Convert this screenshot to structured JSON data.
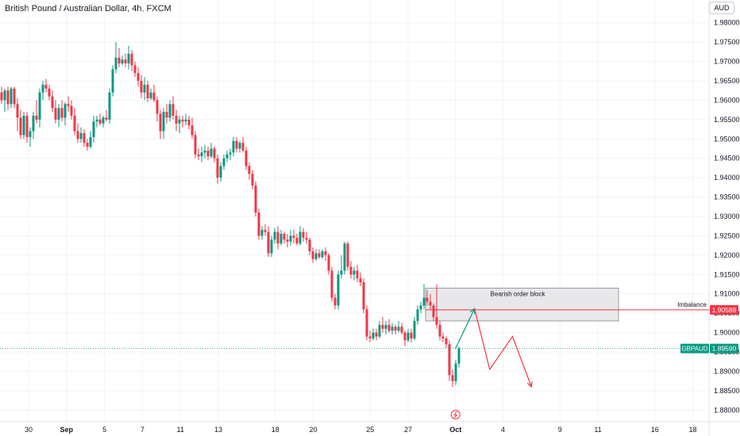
{
  "header": {
    "title": "British Pound / Australian Dollar, 4h, FXCM",
    "currency": "AUD"
  },
  "chart_data": {
    "type": "candlestick",
    "symbol": "GBPAUD",
    "y_ticks": [
      "1.98000",
      "1.97500",
      "1.97000",
      "1.96500",
      "1.96000",
      "1.95500",
      "1.95000",
      "1.94500",
      "1.94000",
      "1.93500",
      "1.93000",
      "1.92500",
      "1.92000",
      "1.91500",
      "1.91000",
      "1.90500",
      "1.90000",
      "1.89500",
      "1.89000",
      "1.88500",
      "1.88000"
    ],
    "ylim": [
      1.8795,
      1.9815
    ],
    "x_ticks": [
      {
        "label": "30",
        "day": 0
      },
      {
        "label": "Sep",
        "day": 2
      },
      {
        "label": "5",
        "day": 4
      },
      {
        "label": "7",
        "day": 6
      },
      {
        "label": "11",
        "day": 8
      },
      {
        "label": "13",
        "day": 10
      },
      {
        "label": "18",
        "day": 13
      },
      {
        "label": "20",
        "day": 15
      },
      {
        "label": "25",
        "day": 18
      },
      {
        "label": "27",
        "day": 20
      },
      {
        "label": "Oct",
        "day": 22.5
      },
      {
        "label": "4",
        "day": 25
      },
      {
        "label": "9",
        "day": 28
      },
      {
        "label": "11",
        "day": 30
      },
      {
        "label": "16",
        "day": 33
      },
      {
        "label": "18",
        "day": 35
      }
    ],
    "candles": [
      {
        "o": 1.962,
        "h": 1.9635,
        "l": 1.959,
        "c": 1.96
      },
      {
        "o": 1.96,
        "h": 1.963,
        "l": 1.957,
        "c": 1.9625
      },
      {
        "o": 1.9625,
        "h": 1.9635,
        "l": 1.9575,
        "c": 1.959
      },
      {
        "o": 1.959,
        "h": 1.9635,
        "l": 1.958,
        "c": 1.963
      },
      {
        "o": 1.963,
        "h": 1.9635,
        "l": 1.958,
        "c": 1.959
      },
      {
        "o": 1.959,
        "h": 1.9605,
        "l": 1.952,
        "c": 1.9555
      },
      {
        "o": 1.9555,
        "h": 1.9575,
        "l": 1.95,
        "c": 1.951
      },
      {
        "o": 1.951,
        "h": 1.957,
        "l": 1.95,
        "c": 1.956
      },
      {
        "o": 1.956,
        "h": 1.957,
        "l": 1.949,
        "c": 1.9505
      },
      {
        "o": 1.9505,
        "h": 1.953,
        "l": 1.948,
        "c": 1.952
      },
      {
        "o": 1.952,
        "h": 1.957,
        "l": 1.95,
        "c": 1.956
      },
      {
        "o": 1.956,
        "h": 1.96,
        "l": 1.954,
        "c": 1.955
      },
      {
        "o": 1.955,
        "h": 1.963,
        "l": 1.953,
        "c": 1.962
      },
      {
        "o": 1.962,
        "h": 1.965,
        "l": 1.96,
        "c": 1.964
      },
      {
        "o": 1.964,
        "h": 1.9655,
        "l": 1.962,
        "c": 1.963
      },
      {
        "o": 1.963,
        "h": 1.964,
        "l": 1.96,
        "c": 1.961
      },
      {
        "o": 1.961,
        "h": 1.9625,
        "l": 1.957,
        "c": 1.958
      },
      {
        "o": 1.958,
        "h": 1.96,
        "l": 1.954,
        "c": 1.955
      },
      {
        "o": 1.955,
        "h": 1.959,
        "l": 1.953,
        "c": 1.958
      },
      {
        "o": 1.958,
        "h": 1.96,
        "l": 1.9545,
        "c": 1.9555
      },
      {
        "o": 1.9555,
        "h": 1.9595,
        "l": 1.9535,
        "c": 1.959
      },
      {
        "o": 1.959,
        "h": 1.961,
        "l": 1.957,
        "c": 1.9585
      },
      {
        "o": 1.9585,
        "h": 1.96,
        "l": 1.955,
        "c": 1.956
      },
      {
        "o": 1.956,
        "h": 1.958,
        "l": 1.951,
        "c": 1.952
      },
      {
        "o": 1.952,
        "h": 1.954,
        "l": 1.949,
        "c": 1.95
      },
      {
        "o": 1.95,
        "h": 1.953,
        "l": 1.949,
        "c": 1.9515
      },
      {
        "o": 1.9515,
        "h": 1.9525,
        "l": 1.948,
        "c": 1.949
      },
      {
        "o": 1.949,
        "h": 1.95,
        "l": 1.947,
        "c": 1.948
      },
      {
        "o": 1.948,
        "h": 1.952,
        "l": 1.9475,
        "c": 1.9505
      },
      {
        "o": 1.9505,
        "h": 1.956,
        "l": 1.949,
        "c": 1.9545
      },
      {
        "o": 1.9545,
        "h": 1.956,
        "l": 1.953,
        "c": 1.955
      },
      {
        "o": 1.955,
        "h": 1.9565,
        "l": 1.9535,
        "c": 1.954
      },
      {
        "o": 1.954,
        "h": 1.956,
        "l": 1.953,
        "c": 1.9555
      },
      {
        "o": 1.9555,
        "h": 1.9575,
        "l": 1.9545,
        "c": 1.955
      },
      {
        "o": 1.955,
        "h": 1.963,
        "l": 1.954,
        "c": 1.962
      },
      {
        "o": 1.962,
        "h": 1.969,
        "l": 1.961,
        "c": 1.968
      },
      {
        "o": 1.968,
        "h": 1.975,
        "l": 1.967,
        "c": 1.971
      },
      {
        "o": 1.971,
        "h": 1.9735,
        "l": 1.9685,
        "c": 1.9695
      },
      {
        "o": 1.9695,
        "h": 1.9715,
        "l": 1.969,
        "c": 1.9705
      },
      {
        "o": 1.9705,
        "h": 1.972,
        "l": 1.9685,
        "c": 1.9695
      },
      {
        "o": 1.9695,
        "h": 1.974,
        "l": 1.968,
        "c": 1.972
      },
      {
        "o": 1.972,
        "h": 1.973,
        "l": 1.9675,
        "c": 1.969
      },
      {
        "o": 1.969,
        "h": 1.97,
        "l": 1.966,
        "c": 1.967
      },
      {
        "o": 1.967,
        "h": 1.9685,
        "l": 1.9635,
        "c": 1.965
      },
      {
        "o": 1.965,
        "h": 1.9665,
        "l": 1.9605,
        "c": 1.962
      },
      {
        "o": 1.962,
        "h": 1.966,
        "l": 1.96,
        "c": 1.964
      },
      {
        "o": 1.964,
        "h": 1.965,
        "l": 1.9595,
        "c": 1.9605
      },
      {
        "o": 1.9605,
        "h": 1.963,
        "l": 1.96,
        "c": 1.962
      },
      {
        "o": 1.962,
        "h": 1.964,
        "l": 1.9595,
        "c": 1.96
      },
      {
        "o": 1.96,
        "h": 1.961,
        "l": 1.9545,
        "c": 1.9565
      },
      {
        "o": 1.9565,
        "h": 1.9575,
        "l": 1.95,
        "c": 1.952
      },
      {
        "o": 1.952,
        "h": 1.958,
        "l": 1.95,
        "c": 1.957
      },
      {
        "o": 1.957,
        "h": 1.959,
        "l": 1.954,
        "c": 1.9555
      },
      {
        "o": 1.9555,
        "h": 1.96,
        "l": 1.9545,
        "c": 1.959
      },
      {
        "o": 1.959,
        "h": 1.961,
        "l": 1.955,
        "c": 1.956
      },
      {
        "o": 1.956,
        "h": 1.9575,
        "l": 1.952,
        "c": 1.954
      },
      {
        "o": 1.954,
        "h": 1.956,
        "l": 1.9515,
        "c": 1.955
      },
      {
        "o": 1.955,
        "h": 1.956,
        "l": 1.953,
        "c": 1.9545
      },
      {
        "o": 1.9545,
        "h": 1.9565,
        "l": 1.9535,
        "c": 1.955
      },
      {
        "o": 1.955,
        "h": 1.956,
        "l": 1.9525,
        "c": 1.9535
      },
      {
        "o": 1.9535,
        "h": 1.9555,
        "l": 1.95,
        "c": 1.951
      },
      {
        "o": 1.951,
        "h": 1.952,
        "l": 1.945,
        "c": 1.946
      },
      {
        "o": 1.946,
        "h": 1.9475,
        "l": 1.9445,
        "c": 1.9455
      },
      {
        "o": 1.9455,
        "h": 1.948,
        "l": 1.944,
        "c": 1.9465
      },
      {
        "o": 1.9465,
        "h": 1.9485,
        "l": 1.945,
        "c": 1.947
      },
      {
        "o": 1.947,
        "h": 1.948,
        "l": 1.9445,
        "c": 1.9455
      },
      {
        "o": 1.9455,
        "h": 1.949,
        "l": 1.945,
        "c": 1.9475
      },
      {
        "o": 1.9475,
        "h": 1.948,
        "l": 1.944,
        "c": 1.945
      },
      {
        "o": 1.945,
        "h": 1.946,
        "l": 1.9385,
        "c": 1.94
      },
      {
        "o": 1.94,
        "h": 1.944,
        "l": 1.939,
        "c": 1.943
      },
      {
        "o": 1.943,
        "h": 1.946,
        "l": 1.942,
        "c": 1.945
      },
      {
        "o": 1.945,
        "h": 1.947,
        "l": 1.944,
        "c": 1.946
      },
      {
        "o": 1.946,
        "h": 1.9475,
        "l": 1.9445,
        "c": 1.9465
      },
      {
        "o": 1.9465,
        "h": 1.9505,
        "l": 1.9455,
        "c": 1.9495
      },
      {
        "o": 1.9495,
        "h": 1.9505,
        "l": 1.9465,
        "c": 1.9475
      },
      {
        "o": 1.9475,
        "h": 1.9495,
        "l": 1.9465,
        "c": 1.949
      },
      {
        "o": 1.949,
        "h": 1.9505,
        "l": 1.9465,
        "c": 1.947
      },
      {
        "o": 1.947,
        "h": 1.948,
        "l": 1.942,
        "c": 1.943
      },
      {
        "o": 1.943,
        "h": 1.944,
        "l": 1.9395,
        "c": 1.941
      },
      {
        "o": 1.941,
        "h": 1.942,
        "l": 1.937,
        "c": 1.938
      },
      {
        "o": 1.938,
        "h": 1.939,
        "l": 1.93,
        "c": 1.931
      },
      {
        "o": 1.931,
        "h": 1.932,
        "l": 1.924,
        "c": 1.925
      },
      {
        "o": 1.925,
        "h": 1.9275,
        "l": 1.924,
        "c": 1.9265
      },
      {
        "o": 1.9265,
        "h": 1.928,
        "l": 1.925,
        "c": 1.926
      },
      {
        "o": 1.926,
        "h": 1.9275,
        "l": 1.9195,
        "c": 1.9205
      },
      {
        "o": 1.9205,
        "h": 1.925,
        "l": 1.9195,
        "c": 1.924
      },
      {
        "o": 1.924,
        "h": 1.927,
        "l": 1.923,
        "c": 1.926
      },
      {
        "o": 1.926,
        "h": 1.9275,
        "l": 1.9215,
        "c": 1.923
      },
      {
        "o": 1.923,
        "h": 1.9265,
        "l": 1.9225,
        "c": 1.9255
      },
      {
        "o": 1.9255,
        "h": 1.926,
        "l": 1.923,
        "c": 1.924
      },
      {
        "o": 1.924,
        "h": 1.9255,
        "l": 1.922,
        "c": 1.9235
      },
      {
        "o": 1.9235,
        "h": 1.9265,
        "l": 1.9225,
        "c": 1.925
      },
      {
        "o": 1.925,
        "h": 1.9265,
        "l": 1.923,
        "c": 1.9245
      },
      {
        "o": 1.9245,
        "h": 1.9255,
        "l": 1.9225,
        "c": 1.923
      },
      {
        "o": 1.923,
        "h": 1.9275,
        "l": 1.9225,
        "c": 1.926
      },
      {
        "o": 1.926,
        "h": 1.927,
        "l": 1.9235,
        "c": 1.9245
      },
      {
        "o": 1.9245,
        "h": 1.926,
        "l": 1.923,
        "c": 1.924
      },
      {
        "o": 1.924,
        "h": 1.9245,
        "l": 1.92,
        "c": 1.921
      },
      {
        "o": 1.921,
        "h": 1.922,
        "l": 1.918,
        "c": 1.919
      },
      {
        "o": 1.919,
        "h": 1.9215,
        "l": 1.9185,
        "c": 1.9205
      },
      {
        "o": 1.9205,
        "h": 1.9215,
        "l": 1.919,
        "c": 1.9195
      },
      {
        "o": 1.9195,
        "h": 1.9215,
        "l": 1.919,
        "c": 1.921
      },
      {
        "o": 1.921,
        "h": 1.922,
        "l": 1.9185,
        "c": 1.92
      },
      {
        "o": 1.92,
        "h": 1.9205,
        "l": 1.915,
        "c": 1.916
      },
      {
        "o": 1.916,
        "h": 1.917,
        "l": 1.908,
        "c": 1.909
      },
      {
        "o": 1.909,
        "h": 1.91,
        "l": 1.906,
        "c": 1.907
      },
      {
        "o": 1.907,
        "h": 1.916,
        "l": 1.906,
        "c": 1.915
      },
      {
        "o": 1.915,
        "h": 1.92,
        "l": 1.914,
        "c": 1.916
      },
      {
        "o": 1.916,
        "h": 1.9235,
        "l": 1.915,
        "c": 1.923
      },
      {
        "o": 1.923,
        "h": 1.9235,
        "l": 1.916,
        "c": 1.917
      },
      {
        "o": 1.917,
        "h": 1.9185,
        "l": 1.914,
        "c": 1.915
      },
      {
        "o": 1.915,
        "h": 1.917,
        "l": 1.9135,
        "c": 1.916
      },
      {
        "o": 1.916,
        "h": 1.9175,
        "l": 1.913,
        "c": 1.914
      },
      {
        "o": 1.914,
        "h": 1.9155,
        "l": 1.912,
        "c": 1.913
      },
      {
        "o": 1.913,
        "h": 1.914,
        "l": 1.905,
        "c": 1.906
      },
      {
        "o": 1.906,
        "h": 1.907,
        "l": 1.898,
        "c": 1.899
      },
      {
        "o": 1.899,
        "h": 1.9005,
        "l": 1.8975,
        "c": 1.8985
      },
      {
        "o": 1.8985,
        "h": 1.901,
        "l": 1.898,
        "c": 1.9
      },
      {
        "o": 1.9,
        "h": 1.901,
        "l": 1.898,
        "c": 1.899
      },
      {
        "o": 1.899,
        "h": 1.903,
        "l": 1.8985,
        "c": 1.902
      },
      {
        "o": 1.902,
        "h": 1.904,
        "l": 1.9,
        "c": 1.901
      },
      {
        "o": 1.901,
        "h": 1.903,
        "l": 1.8995,
        "c": 1.902
      },
      {
        "o": 1.902,
        "h": 1.9035,
        "l": 1.9,
        "c": 1.9005
      },
      {
        "o": 1.9005,
        "h": 1.9025,
        "l": 1.8995,
        "c": 1.9015
      },
      {
        "o": 1.9015,
        "h": 1.902,
        "l": 1.8995,
        "c": 1.9005
      },
      {
        "o": 1.9005,
        "h": 1.903,
        "l": 1.9,
        "c": 1.9015
      },
      {
        "o": 1.9015,
        "h": 1.9025,
        "l": 1.8995,
        "c": 1.9
      },
      {
        "o": 1.9,
        "h": 1.9005,
        "l": 1.8965,
        "c": 1.898
      },
      {
        "o": 1.898,
        "h": 1.901,
        "l": 1.8975,
        "c": 1.9
      },
      {
        "o": 1.9,
        "h": 1.901,
        "l": 1.8975,
        "c": 1.8985
      },
      {
        "o": 1.8985,
        "h": 1.904,
        "l": 1.898,
        "c": 1.903
      },
      {
        "o": 1.903,
        "h": 1.907,
        "l": 1.902,
        "c": 1.906
      },
      {
        "o": 1.906,
        "h": 1.908,
        "l": 1.905,
        "c": 1.907
      },
      {
        "o": 1.907,
        "h": 1.9125,
        "l": 1.906,
        "c": 1.909
      },
      {
        "o": 1.909,
        "h": 1.911,
        "l": 1.907,
        "c": 1.908
      },
      {
        "o": 1.908,
        "h": 1.91,
        "l": 1.906,
        "c": 1.907
      },
      {
        "o": 1.907,
        "h": 1.9075,
        "l": 1.903,
        "c": 1.904
      },
      {
        "o": 1.904,
        "h": 1.9125,
        "l": 1.901,
        "c": 1.902
      },
      {
        "o": 1.902,
        "h": 1.903,
        "l": 1.898,
        "c": 1.899
      },
      {
        "o": 1.899,
        "h": 1.9,
        "l": 1.8975,
        "c": 1.8985
      },
      {
        "o": 1.8985,
        "h": 1.899,
        "l": 1.896,
        "c": 1.897
      },
      {
        "o": 1.897,
        "h": 1.898,
        "l": 1.8875,
        "c": 1.889
      },
      {
        "o": 1.889,
        "h": 1.8905,
        "l": 1.886,
        "c": 1.8875
      },
      {
        "o": 1.8875,
        "h": 1.893,
        "l": 1.8865,
        "c": 1.892
      },
      {
        "o": 1.892,
        "h": 1.8965,
        "l": 1.891,
        "c": 1.8959
      }
    ],
    "current_price_label": "1.89590",
    "current_price": 1.8959,
    "annotations": {
      "order_block_label": "Bearish order block",
      "order_block_low": 1.903,
      "order_block_high": 1.9115,
      "imbalance_label": "Imbalance",
      "imbalance_price_label": "1.90588",
      "imbalance_price": 1.90588
    },
    "projection": {
      "up": [
        {
          "day": 22.5,
          "price": 1.8959
        },
        {
          "day": 23.5,
          "price": 1.9062
        }
      ],
      "down": [
        {
          "day": 23.5,
          "price": 1.9062
        },
        {
          "day": 24.3,
          "price": 1.8905
        },
        {
          "day": 25.5,
          "price": 1.899
        },
        {
          "day": 26.5,
          "price": 1.886
        }
      ]
    },
    "colors": {
      "up": "#089981",
      "down": "#f23645",
      "grid": "#f0f3fa",
      "order_block_fill": "#e8e8ea",
      "order_block_border": "#787b86"
    }
  }
}
